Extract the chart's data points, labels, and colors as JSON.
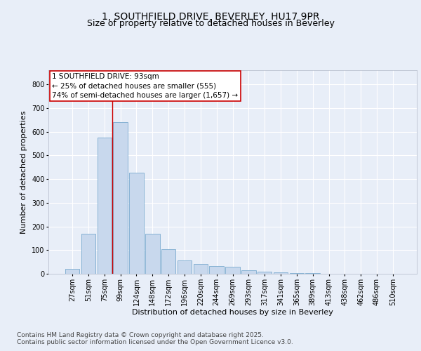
{
  "title_line1": "1, SOUTHFIELD DRIVE, BEVERLEY, HU17 9PR",
  "title_line2": "Size of property relative to detached houses in Beverley",
  "xlabel": "Distribution of detached houses by size in Beverley",
  "ylabel": "Number of detached properties",
  "categories": [
    "27sqm",
    "51sqm",
    "75sqm",
    "99sqm",
    "124sqm",
    "148sqm",
    "172sqm",
    "196sqm",
    "220sqm",
    "244sqm",
    "269sqm",
    "293sqm",
    "317sqm",
    "341sqm",
    "365sqm",
    "389sqm",
    "413sqm",
    "438sqm",
    "462sqm",
    "486sqm",
    "510sqm"
  ],
  "values": [
    20,
    168,
    575,
    640,
    428,
    170,
    103,
    57,
    42,
    33,
    30,
    14,
    8,
    5,
    4,
    2,
    1,
    0,
    0,
    0,
    0
  ],
  "bar_color": "#c8d8ed",
  "bar_edge_color": "#7aaacf",
  "vline_x": 2.5,
  "vline_color": "#cc0000",
  "annotation_text": "1 SOUTHFIELD DRIVE: 93sqm\n← 25% of detached houses are smaller (555)\n74% of semi-detached houses are larger (1,657) →",
  "annotation_box_color": "#ffffff",
  "annotation_box_edge": "#cc0000",
  "bg_color": "#e8eef8",
  "plot_bg_color": "#e8eef8",
  "grid_color": "#ffffff",
  "ylim": [
    0,
    860
  ],
  "yticks": [
    0,
    100,
    200,
    300,
    400,
    500,
    600,
    700,
    800
  ],
  "footer_text": "Contains HM Land Registry data © Crown copyright and database right 2025.\nContains public sector information licensed under the Open Government Licence v3.0.",
  "title_fontsize": 10,
  "subtitle_fontsize": 9,
  "axis_label_fontsize": 8,
  "tick_fontsize": 7,
  "annotation_fontsize": 7.5,
  "footer_fontsize": 6.5
}
